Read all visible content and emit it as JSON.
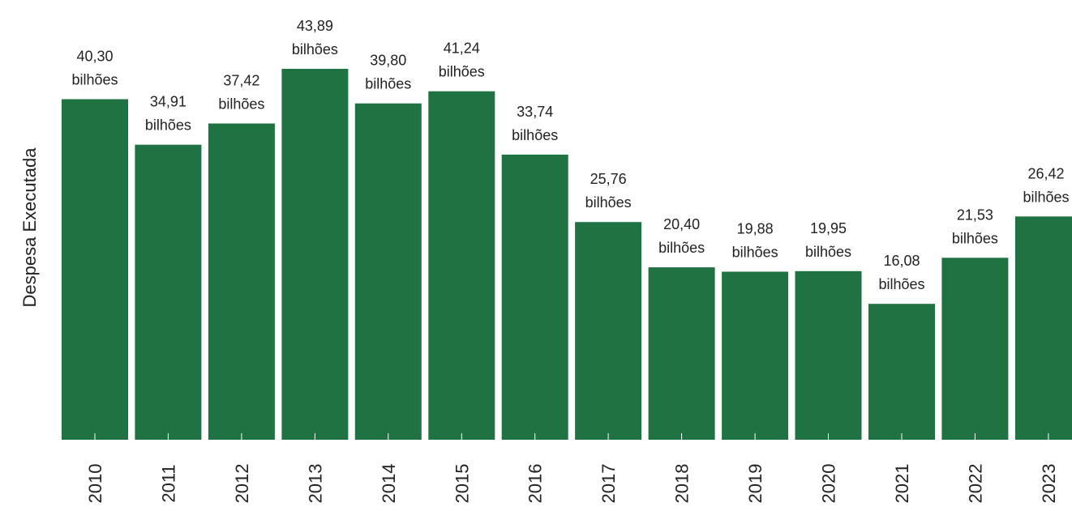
{
  "chart_data": {
    "type": "bar",
    "title": "",
    "xlabel": "",
    "ylabel": "Despesa Executada",
    "categories": [
      "2010",
      "2011",
      "2012",
      "2013",
      "2014",
      "2015",
      "2016",
      "2017",
      "2018",
      "2019",
      "2020",
      "2021",
      "2022",
      "2023"
    ],
    "values": [
      40.3,
      34.91,
      37.42,
      43.89,
      39.8,
      41.24,
      33.74,
      25.76,
      20.4,
      19.88,
      19.95,
      16.08,
      21.53,
      26.42
    ],
    "value_labels": [
      "40,30",
      "34,91",
      "37,42",
      "43,89",
      "39,80",
      "41,24",
      "33,74",
      "25,76",
      "20,40",
      "19,88",
      "19,95",
      "16,08",
      "21,53",
      "26,42"
    ],
    "unit_label": "bilhões",
    "ylim": [
      0,
      43.89
    ],
    "grid": false,
    "legend": "none",
    "colors": {
      "bar": "#1f7242",
      "text": "#222222",
      "axis_tick": "#ffffff"
    }
  }
}
